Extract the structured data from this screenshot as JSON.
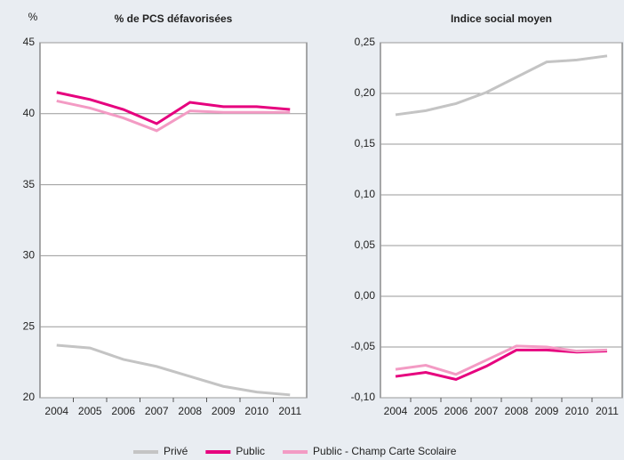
{
  "chart_data": [
    {
      "type": "line",
      "title": "% de PCS défavorisées",
      "y_label": "%",
      "categories": [
        "2004",
        "2005",
        "2006",
        "2007",
        "2008",
        "2009",
        "2010",
        "2011"
      ],
      "series": [
        {
          "name": "Privé",
          "color": "#c4c4c4",
          "values": [
            23.7,
            23.5,
            22.7,
            22.2,
            21.5,
            20.8,
            20.4,
            20.2
          ]
        },
        {
          "name": "Public",
          "color": "#e6007e",
          "values": [
            41.5,
            41.0,
            40.3,
            39.3,
            40.8,
            40.5,
            40.5,
            40.3
          ]
        },
        {
          "name": "Public - Champ Carte Scolaire",
          "color": "#f39bc4",
          "values": [
            40.9,
            40.4,
            39.7,
            38.8,
            40.2,
            40.1,
            40.1,
            40.1
          ]
        }
      ],
      "ylim": [
        20,
        45
      ],
      "yticks": [
        20,
        25,
        30,
        35,
        40,
        45
      ],
      "grid": true
    },
    {
      "type": "line",
      "title": "Indice social moyen",
      "categories": [
        "2004",
        "2005",
        "2006",
        "2007",
        "2008",
        "2009",
        "2010",
        "2011"
      ],
      "series": [
        {
          "name": "Privé",
          "color": "#c4c4c4",
          "values": [
            0.179,
            0.183,
            0.19,
            0.201,
            0.216,
            0.231,
            0.233,
            0.237
          ]
        },
        {
          "name": "Public",
          "color": "#e6007e",
          "values": [
            -0.079,
            -0.075,
            -0.082,
            -0.069,
            -0.053,
            -0.053,
            -0.055,
            -0.054
          ]
        },
        {
          "name": "Public - Champ Carte Scolaire",
          "color": "#f39bc4",
          "values": [
            -0.072,
            -0.068,
            -0.077,
            -0.063,
            -0.049,
            -0.05,
            -0.054,
            -0.053
          ]
        }
      ],
      "ylim": [
        -0.1,
        0.25
      ],
      "yticks": [
        {
          "value": -0.1,
          "label": "-0,10"
        },
        {
          "value": -0.05,
          "label": "-0,05"
        },
        {
          "value": 0,
          "label": "0,00"
        },
        {
          "value": 0.05,
          "label": "0,05"
        },
        {
          "value": 0.1,
          "label": "0,10"
        },
        {
          "value": 0.15,
          "label": "0,15"
        },
        {
          "value": 0.2,
          "label": "0,20"
        },
        {
          "value": 0.25,
          "label": "0,25"
        }
      ],
      "grid": true
    }
  ]
}
